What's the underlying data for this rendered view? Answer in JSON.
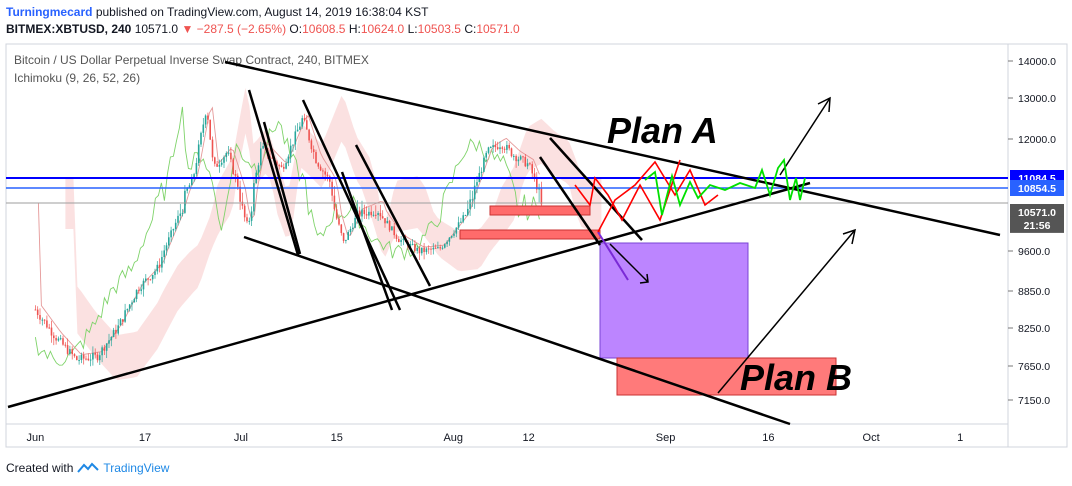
{
  "header": {
    "author": "Turningmecard",
    "published": "published on TradingView.com, August 14, 2019 16:38:04 KST",
    "symbol": "BITMEX:XBTUSD, 240",
    "last": "10571.0",
    "change": "−287.5 (−2.65%)",
    "o_label": "O:",
    "o": "10608.5",
    "h_label": "H:",
    "h": "10624.0",
    "l_label": "L:",
    "l": "10503.5",
    "c_label": "C:",
    "c": "10571.0"
  },
  "chart_title": "Bitcoin / US Dollar Perpetual Inverse Swap Contract, 240, BITMEX",
  "indicator": "Ichimoku (9, 26, 52, 26)",
  "annotations": {
    "plan_a": "Plan A",
    "plan_b": "Plan B"
  },
  "footer": {
    "created_with": "Created with",
    "brand": "TradingView"
  },
  "colors": {
    "up": "#26a69a",
    "down": "#ef5350",
    "hline": "#0000ff",
    "plan_a_path": "#00e000",
    "purple_box": "#b070ff",
    "red_box": "#ff6b6b"
  },
  "chart_data": {
    "type": "line",
    "title": "Bitcoin / US Dollar Perpetual Inverse Swap Contract, 240, BITMEX",
    "x_tick_labels": [
      "Jun",
      "17",
      "Jul",
      "15",
      "Aug",
      "12",
      "Sep",
      "16",
      "Oct",
      "1"
    ],
    "y_tick_labels": [
      "14000.0",
      "13000.0",
      "12000.0",
      "9600.0",
      "8850.0",
      "8250.0",
      "7650.0",
      "7150.0"
    ],
    "price_markers": [
      {
        "label": "11084.5",
        "value": 11084.5,
        "color": "#0000ff"
      },
      {
        "label": "10854.5",
        "value": 10854.5,
        "color": "#2962ff"
      },
      {
        "label": "10571.0",
        "value": 10571.0,
        "color": "#555555"
      },
      {
        "label": "21:56",
        "value": 10250,
        "color": "#555555"
      }
    ],
    "horizontal_lines": [
      11084.5,
      10854.5
    ],
    "series": [
      {
        "values": [
          [
            "2019-06-01",
            8550
          ],
          [
            "2019-06-04",
            8100
          ],
          [
            "2019-06-07",
            7750
          ],
          [
            "2019-06-10",
            7800
          ],
          [
            "2019-06-13",
            8250
          ],
          [
            "2019-06-16",
            8900
          ],
          [
            "2019-06-19",
            9300
          ],
          [
            "2019-06-22",
            10500
          ],
          [
            "2019-06-24",
            11050
          ],
          [
            "2019-06-26",
            12800
          ],
          [
            "2019-06-27",
            11300
          ],
          [
            "2019-06-29",
            11700
          ],
          [
            "2019-07-02",
            10200
          ],
          [
            "2019-07-04",
            11800
          ],
          [
            "2019-07-07",
            11300
          ],
          [
            "2019-07-10",
            12500
          ],
          [
            "2019-07-12",
            11500
          ],
          [
            "2019-07-14",
            11000
          ],
          [
            "2019-07-16",
            9800
          ],
          [
            "2019-07-18",
            10500
          ],
          [
            "2019-07-21",
            10600
          ],
          [
            "2019-07-24",
            9900
          ],
          [
            "2019-07-27",
            9600
          ],
          [
            "2019-07-30",
            9650
          ],
          [
            "2019-08-02",
            10300
          ],
          [
            "2019-08-04",
            10800
          ],
          [
            "2019-08-06",
            11700
          ],
          [
            "2019-08-08",
            11900
          ],
          [
            "2019-08-10",
            11600
          ],
          [
            "2019-08-12",
            11400
          ],
          [
            "2019-08-13",
            11000
          ],
          [
            "2019-08-14",
            10571
          ]
        ]
      }
    ]
  }
}
